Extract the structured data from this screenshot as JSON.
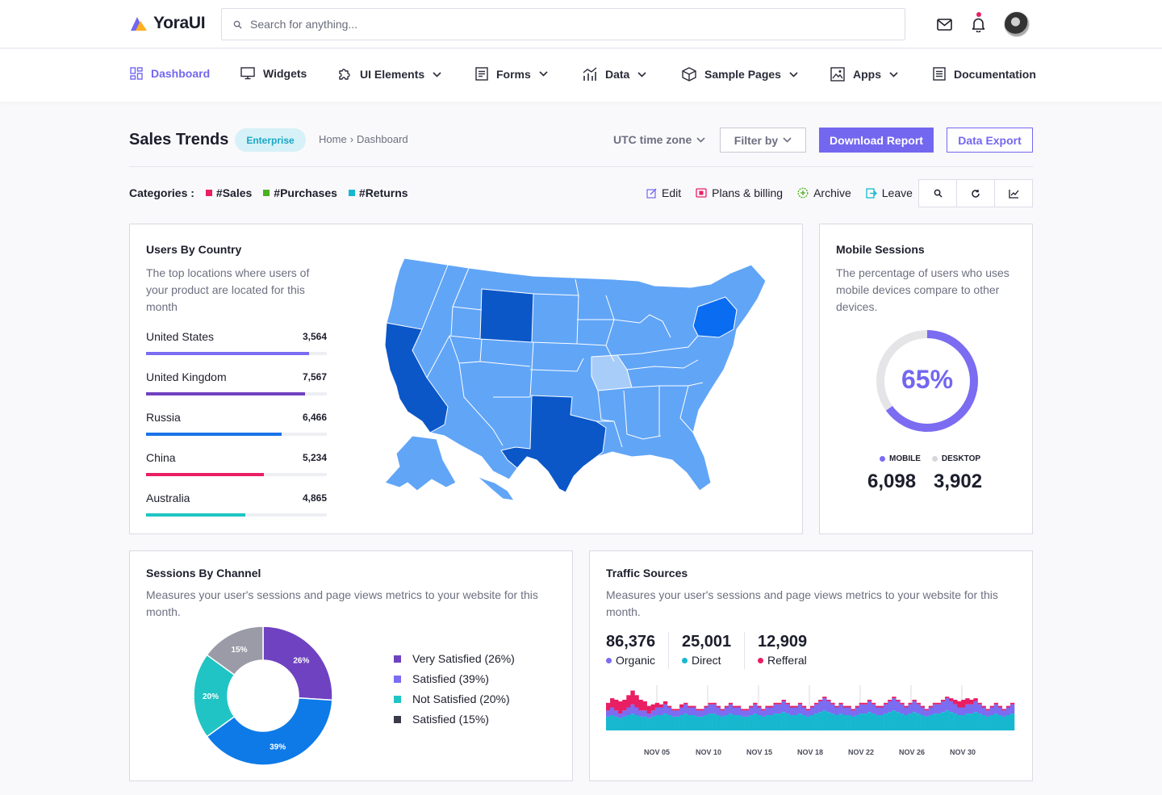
{
  "app": {
    "name": "YoraUI"
  },
  "search": {
    "placeholder": "Search for anything..."
  },
  "nav": {
    "items": [
      {
        "label": "Dashboard",
        "icon": "dashboard-icon",
        "active": true
      },
      {
        "label": "Widgets",
        "icon": "monitor-icon"
      },
      {
        "label": "UI Elements",
        "icon": "puzzle-icon",
        "dropdown": true
      },
      {
        "label": "Forms",
        "icon": "form-icon",
        "dropdown": true
      },
      {
        "label": "Data",
        "icon": "bar-chart-icon",
        "dropdown": true
      },
      {
        "label": "Sample Pages",
        "icon": "cube-icon",
        "dropdown": true
      },
      {
        "label": "Apps",
        "icon": "image-icon",
        "dropdown": true
      },
      {
        "label": "Documentation",
        "icon": "document-icon"
      }
    ]
  },
  "header": {
    "title": "Sales Trends",
    "badge": "Enterprise",
    "breadcrumb": {
      "home": "Home",
      "separator": "›",
      "current": "Dashboard"
    },
    "timezone": "UTC time zone",
    "filter": "Filter by",
    "download": "Download Report",
    "export": "Data Export"
  },
  "categories": {
    "label": "Categories :",
    "items": [
      {
        "label": "#Sales",
        "color": "#e91e63"
      },
      {
        "label": "#Purchases",
        "color": "#4caf1f"
      },
      {
        "label": "#Returns",
        "color": "#17b8cf"
      }
    ]
  },
  "actions": [
    {
      "label": "Edit",
      "icon": "edit-icon",
      "color": "#7367f0"
    },
    {
      "label": "Plans & billing",
      "icon": "billing-icon",
      "color": "#e91e63"
    },
    {
      "label": "Archive",
      "icon": "archive-icon",
      "color": "#4caf1f"
    },
    {
      "label": "Leave",
      "icon": "leave-icon",
      "color": "#17b8cf"
    }
  ],
  "users_by_country": {
    "title": "Users By Country",
    "description": "The top locations where users of your product are located for this month",
    "rows": [
      {
        "country": "United States",
        "value": "3,564",
        "progress": 0.9,
        "color": "#7b6cf2"
      },
      {
        "country": "United Kingdom",
        "value": "7,567",
        "progress": 0.88,
        "color": "#6f42c1"
      },
      {
        "country": "Russia",
        "value": "6,466",
        "progress": 0.75,
        "color": "#1a73e8"
      },
      {
        "country": "China",
        "value": "5,234",
        "progress": 0.65,
        "color": "#e91e63"
      },
      {
        "country": "Australia",
        "value": "4,865",
        "progress": 0.55,
        "color": "#20c4c4"
      }
    ]
  },
  "mobile_sessions": {
    "title": "Mobile Sessions",
    "description": "The percentage of users who uses mobile devices compare to other devices.",
    "percent": "65%",
    "percent_value": 0.65,
    "mobile_label": "MOBILE",
    "desktop_label": "DESKTOP",
    "mobile_value": "6,098",
    "desktop_value": "3,902",
    "mobile_color": "#7b6cf2",
    "desktop_color": "#d6d7dd"
  },
  "sessions_by_channel": {
    "title": "Sessions By Channel",
    "description": "Measures your user's sessions and page views metrics to your website for this month.",
    "legend": [
      {
        "label": "Very Satisfied (26%)",
        "color": "#6f42c1"
      },
      {
        "label": "Satisfied (39%)",
        "color": "#7b6cf2"
      },
      {
        "label": "Not Satisfied (20%)",
        "color": "#20c4c4"
      },
      {
        "label": "Satisfied (15%)",
        "color": "#3a3b48"
      }
    ]
  },
  "traffic_sources": {
    "title": "Traffic Sources",
    "description": "Measures your user's sessions and page views metrics to your website for this month.",
    "stats": [
      {
        "value": "86,376",
        "label": "Organic",
        "color": "#7b6cf2"
      },
      {
        "value": "25,001",
        "label": "Direct",
        "color": "#17b8cf"
      },
      {
        "value": "12,909",
        "label": "Refferal",
        "color": "#e91e63"
      }
    ]
  },
  "chart_data": [
    {
      "type": "pie",
      "categories": [
        "Very Satisfied",
        "Satisfied",
        "Not Satisfied",
        "Satisfied"
      ],
      "values": [
        26,
        39,
        20,
        15
      ],
      "labels": [
        "26%",
        "39%",
        "20%",
        "15%"
      ],
      "colors": [
        "#6f42c1",
        "#0d7ae8",
        "#20c4c4",
        "#9a9ba6"
      ]
    },
    {
      "type": "bar",
      "x_ticks": [
        "NOV 05",
        "NOV 10",
        "NOV 15",
        "NOV 18",
        "NOV 22",
        "NOV 26",
        "NOV 30"
      ],
      "series": [
        {
          "name": "Organic",
          "color": "#7b6cf2",
          "values": [
            4,
            5,
            4,
            3,
            4,
            5,
            6,
            5,
            4,
            4,
            3,
            4,
            5,
            5,
            6,
            5,
            4,
            4,
            5,
            6,
            5,
            5,
            4,
            4,
            5,
            6,
            6,
            5,
            4,
            5,
            6,
            5,
            5,
            4,
            4,
            5,
            6,
            5,
            4,
            5,
            5,
            6,
            6,
            7,
            6,
            5,
            5,
            6,
            5,
            4,
            5,
            6,
            7,
            8,
            7,
            6,
            5,
            6,
            5,
            5,
            4,
            5,
            6,
            6,
            7,
            6,
            5,
            5,
            6,
            7,
            8,
            7,
            6,
            5,
            6,
            7,
            6,
            5,
            4,
            5,
            6,
            6,
            7,
            8,
            7,
            6,
            5,
            5,
            6,
            6,
            7,
            6,
            5,
            4,
            5,
            6,
            5,
            4,
            5,
            6
          ]
        },
        {
          "name": "Direct",
          "color": "#17b8cf",
          "values": [
            9,
            10,
            9,
            8,
            9,
            10,
            11,
            10,
            9,
            9,
            8,
            9,
            10,
            10,
            11,
            10,
            9,
            9,
            10,
            11,
            10,
            10,
            9,
            9,
            10,
            11,
            11,
            10,
            9,
            10,
            11,
            10,
            10,
            9,
            9,
            10,
            11,
            10,
            9,
            10,
            10,
            11,
            11,
            12,
            11,
            10,
            10,
            11,
            10,
            9,
            10,
            11,
            12,
            13,
            12,
            11,
            10,
            11,
            10,
            10,
            9,
            10,
            11,
            11,
            12,
            11,
            10,
            10,
            11,
            12,
            13,
            12,
            11,
            10,
            11,
            12,
            11,
            10,
            9,
            10,
            11,
            11,
            12,
            13,
            12,
            11,
            10,
            10,
            11,
            11,
            12,
            11,
            10,
            9,
            10,
            11,
            10,
            9,
            10,
            11
          ]
        },
        {
          "name": "Refferal",
          "color": "#e91e63",
          "values": [
            5,
            6,
            7,
            8,
            7,
            8,
            9,
            8,
            7,
            6,
            5,
            4,
            3,
            2,
            2,
            1,
            1,
            1,
            2,
            1,
            1,
            1,
            1,
            1,
            1,
            1,
            1,
            1,
            1,
            1,
            1,
            1,
            1,
            1,
            1,
            1,
            1,
            1,
            1,
            1,
            1,
            1,
            1,
            1,
            1,
            1,
            1,
            1,
            1,
            1,
            1,
            1,
            1,
            1,
            1,
            1,
            1,
            1,
            1,
            1,
            1,
            1,
            1,
            1,
            1,
            1,
            1,
            1,
            1,
            1,
            1,
            1,
            1,
            1,
            1,
            1,
            1,
            1,
            1,
            1,
            1,
            1,
            1,
            1,
            2,
            3,
            4,
            5,
            4,
            3,
            2,
            1,
            1,
            1,
            1,
            1,
            1,
            1,
            1,
            1
          ]
        }
      ]
    }
  ]
}
